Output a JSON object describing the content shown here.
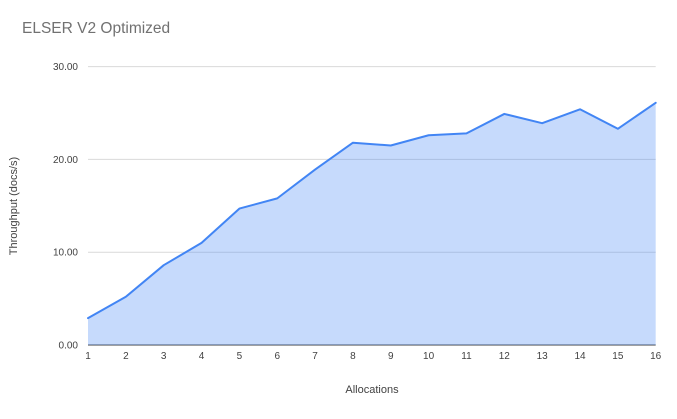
{
  "chart_data": {
    "type": "area",
    "title": "ELSER V2 Optimized",
    "xlabel": "Allocations",
    "ylabel": "Throughput (docs/s)",
    "categories": [
      1,
      2,
      3,
      4,
      5,
      6,
      7,
      8,
      9,
      10,
      11,
      12,
      13,
      14,
      15,
      16
    ],
    "series": [
      {
        "name": "Throughput",
        "values": [
          2.9,
          5.2,
          8.6,
          11.0,
          14.7,
          15.8,
          18.9,
          21.8,
          21.5,
          22.6,
          22.8,
          24.9,
          23.9,
          25.4,
          23.3,
          26.1
        ]
      }
    ],
    "ylim": [
      0,
      30
    ],
    "y_ticks": [
      {
        "value": 0,
        "label": "0.00"
      },
      {
        "value": 10,
        "label": "10.00"
      },
      {
        "value": 20,
        "label": "20.00"
      },
      {
        "value": 30,
        "label": "30.00"
      }
    ],
    "grid": true,
    "legend_position": "none",
    "colors": {
      "line": "#4285f4",
      "area_fill": "rgba(66,133,244,0.3)",
      "gridline": "#d9d9d9",
      "baseline": "#424242",
      "tick_text": "#424242",
      "title_text": "#717171",
      "background": "#ffffff"
    }
  }
}
